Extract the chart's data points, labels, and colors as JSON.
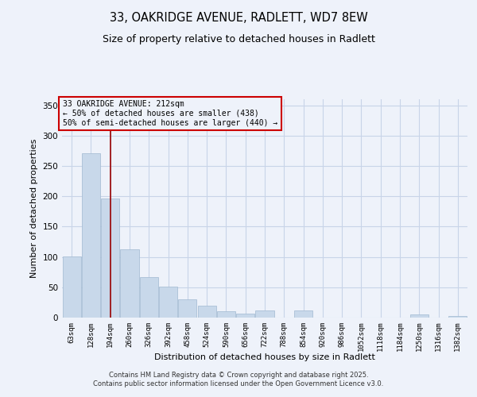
{
  "title_line1": "33, OAKRIDGE AVENUE, RADLETT, WD7 8EW",
  "title_line2": "Size of property relative to detached houses in Radlett",
  "xlabel": "Distribution of detached houses by size in Radlett",
  "ylabel": "Number of detached properties",
  "bar_color": "#c8d8ea",
  "bar_edgecolor": "#a0b8d0",
  "annotation_line_color": "#990000",
  "annotation_box_edgecolor": "#cc0000",
  "background_color": "#eef2fa",
  "grid_color": "#c8d4e8",
  "categories": [
    "63sqm",
    "128sqm",
    "194sqm",
    "260sqm",
    "326sqm",
    "392sqm",
    "458sqm",
    "524sqm",
    "590sqm",
    "656sqm",
    "722sqm",
    "788sqm",
    "854sqm",
    "920sqm",
    "986sqm",
    "1052sqm",
    "1118sqm",
    "1184sqm",
    "1250sqm",
    "1316sqm",
    "1382sqm"
  ],
  "values": [
    101,
    271,
    197,
    113,
    67,
    51,
    30,
    20,
    10,
    7,
    12,
    0,
    12,
    0,
    0,
    0,
    0,
    0,
    5,
    0,
    3
  ],
  "annotation_line1": "33 OAKRIDGE AVENUE: 212sqm",
  "annotation_line2": "← 50% of detached houses are smaller (438)",
  "annotation_line3": "50% of semi-detached houses are larger (440) →",
  "vline_position": 2,
  "ylim": [
    0,
    360
  ],
  "yticks": [
    0,
    50,
    100,
    150,
    200,
    250,
    300,
    350
  ],
  "footer_line1": "Contains HM Land Registry data © Crown copyright and database right 2025.",
  "footer_line2": "Contains public sector information licensed under the Open Government Licence v3.0."
}
